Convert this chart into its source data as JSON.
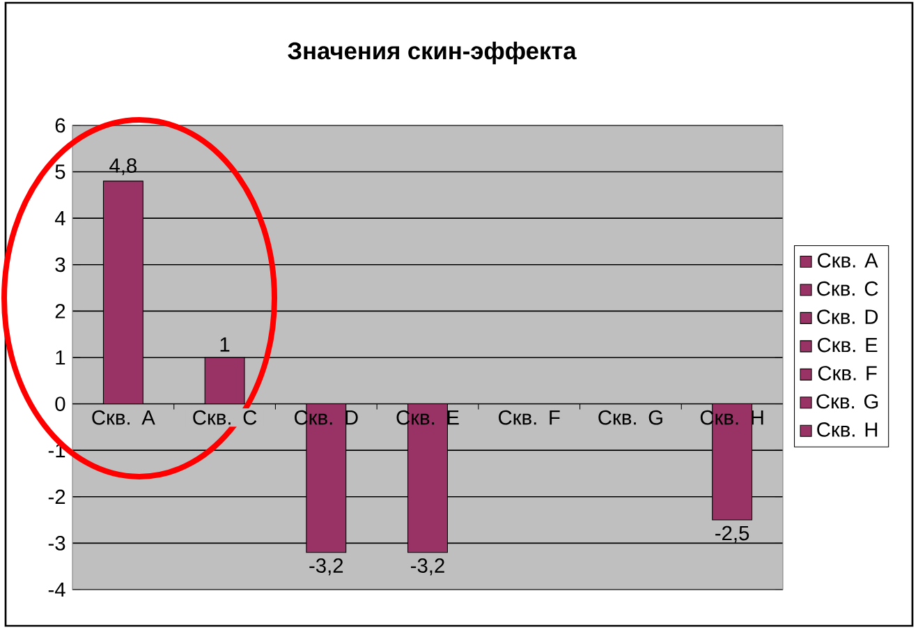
{
  "chart_data": {
    "type": "bar",
    "title": "Значения скин-эффекта",
    "categories": [
      "Скв. A",
      "Скв. C",
      "Скв. D",
      "Скв. E",
      "Скв. F",
      "Скв. G",
      "Скв. H"
    ],
    "series": [
      {
        "name": "Скв. A",
        "color": "#993366",
        "values": [
          4.8,
          null,
          null,
          null,
          null,
          null,
          null
        ],
        "value_labels": [
          "4,8",
          null,
          null,
          null,
          null,
          null,
          null
        ]
      },
      {
        "name": "Скв. C",
        "color": "#993366",
        "values": [
          null,
          1,
          null,
          null,
          null,
          null,
          null
        ],
        "value_labels": [
          null,
          "1",
          null,
          null,
          null,
          null,
          null
        ]
      },
      {
        "name": "Скв. D",
        "color": "#993366",
        "values": [
          null,
          null,
          -3.2,
          null,
          null,
          null,
          null
        ],
        "value_labels": [
          null,
          null,
          "-3,2",
          null,
          null,
          null,
          null
        ]
      },
      {
        "name": "Скв. E",
        "color": "#993366",
        "values": [
          null,
          null,
          null,
          -3.2,
          null,
          null,
          null
        ],
        "value_labels": [
          null,
          null,
          null,
          "-3,2",
          null,
          null,
          null
        ]
      },
      {
        "name": "Скв. F",
        "color": "#993366",
        "values": [
          null,
          null,
          null,
          null,
          null,
          null,
          null
        ]
      },
      {
        "name": "Скв. G",
        "color": "#993366",
        "values": [
          null,
          null,
          null,
          null,
          null,
          null,
          null
        ]
      },
      {
        "name": "Скв. H",
        "color": "#993366",
        "values": [
          null,
          null,
          null,
          null,
          null,
          null,
          -2.5
        ],
        "value_labels": [
          null,
          null,
          null,
          null,
          null,
          null,
          "-2,5"
        ]
      }
    ],
    "ylim": [
      -4,
      6
    ],
    "yticks": [
      -4,
      -3,
      -2,
      -1,
      0,
      1,
      2,
      3,
      4,
      5,
      6
    ],
    "grid": "y",
    "legend": "right"
  }
}
